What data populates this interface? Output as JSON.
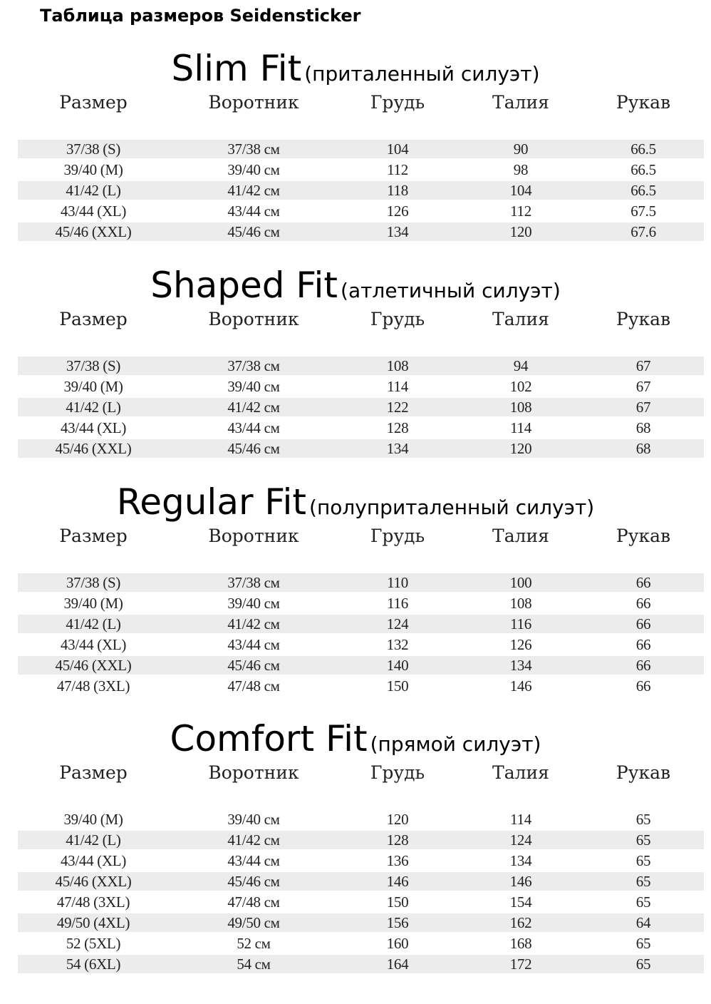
{
  "doc_title": "Таблица размеров Seidensticker",
  "headers": [
    "Размер",
    "Воротник",
    "Грудь",
    "Талия",
    "Рукав"
  ],
  "stripe_color": "#ececec",
  "sections": [
    {
      "name": "Slim Fit",
      "subtitle": "(приталенный силуэт)",
      "stripe_first": true,
      "rows": [
        [
          "37/38 (S)",
          "37/38 см",
          "104",
          "90",
          "66.5"
        ],
        [
          "39/40 (M)",
          "39/40 см",
          "112",
          "98",
          "66.5"
        ],
        [
          "41/42 (L)",
          "41/42 см",
          "118",
          "104",
          "66.5"
        ],
        [
          "43/44 (XL)",
          "43/44 см",
          "126",
          "112",
          "67.5"
        ],
        [
          "45/46 (XXL)",
          "45/46 см",
          "134",
          "120",
          "67.6"
        ]
      ]
    },
    {
      "name": "Shaped Fit",
      "subtitle": "(атлетичный силуэт)",
      "stripe_first": true,
      "rows": [
        [
          "37/38 (S)",
          "37/38 см",
          "108",
          "94",
          "67"
        ],
        [
          "39/40 (M)",
          "39/40 см",
          "114",
          "102",
          "67"
        ],
        [
          "41/42 (L)",
          "41/42 см",
          "122",
          "108",
          "67"
        ],
        [
          "43/44 (XL)",
          "43/44 см",
          "128",
          "114",
          "68"
        ],
        [
          "45/46 (XXL)",
          "45/46 см",
          "134",
          "120",
          "68"
        ]
      ]
    },
    {
      "name": "Regular Fit",
      "subtitle": "(полуприталенный силуэт)",
      "stripe_first": true,
      "rows": [
        [
          "37/38 (S)",
          "37/38 см",
          "110",
          "100",
          "66"
        ],
        [
          "39/40 (M)",
          "39/40 см",
          "116",
          "108",
          "66"
        ],
        [
          "41/42 (L)",
          "41/42 см",
          "124",
          "116",
          "66"
        ],
        [
          "43/44 (XL)",
          "43/44 см",
          "132",
          "126",
          "66"
        ],
        [
          "45/46 (XXL)",
          "45/46 см",
          "140",
          "134",
          "66"
        ],
        [
          "47/48 (3XL)",
          "47/48 см",
          "150",
          "146",
          "66"
        ]
      ]
    },
    {
      "name": "Comfort Fit",
      "subtitle": "(прямой силуэт)",
      "stripe_first": false,
      "rows": [
        [
          "39/40 (M)",
          "39/40 см",
          "120",
          "114",
          "65"
        ],
        [
          "41/42 (L)",
          "41/42 см",
          "128",
          "124",
          "65"
        ],
        [
          "43/44 (XL)",
          "43/44 см",
          "136",
          "134",
          "65"
        ],
        [
          "45/46 (XXL)",
          "45/46 см",
          "146",
          "146",
          "65"
        ],
        [
          "47/48 (3XL)",
          "47/48 см",
          "150",
          "154",
          "65"
        ],
        [
          "49/50 (4XL)",
          "49/50 см",
          "156",
          "162",
          "64"
        ],
        [
          "52 (5XL)",
          "52 см",
          "160",
          "168",
          "65"
        ],
        [
          "54 (6XL)",
          "54 см",
          "164",
          "172",
          "65"
        ]
      ]
    }
  ]
}
